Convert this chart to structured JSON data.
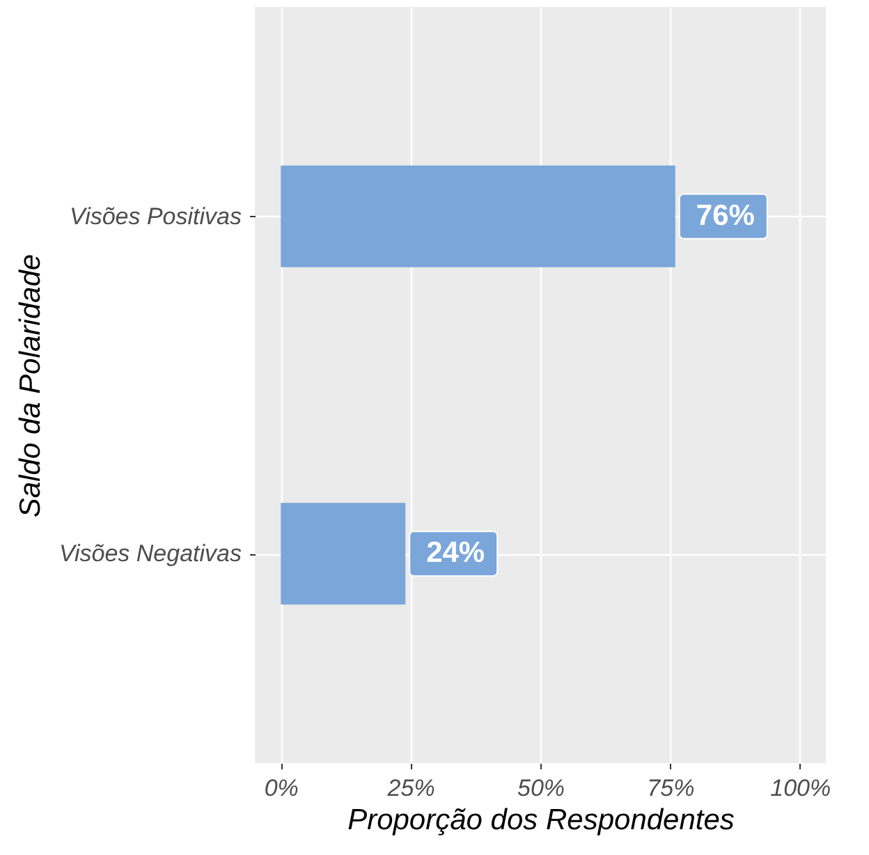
{
  "chart_data": {
    "type": "bar",
    "orientation": "horizontal",
    "xlabel": "Proporção dos Respondentes",
    "ylabel": "Saldo da Polaridade",
    "categories": [
      "Visões Positivas",
      "Visões Negativas"
    ],
    "values": [
      76,
      24
    ],
    "color": "#7aa6da",
    "value_labels": [
      "76%",
      "24%"
    ],
    "xlim": [
      -5,
      105
    ],
    "xticks": [
      {
        "value": 0,
        "label": "0%"
      },
      {
        "value": 25,
        "label": "25%"
      },
      {
        "value": 50,
        "label": "50%"
      },
      {
        "value": 75,
        "label": "75%"
      },
      {
        "value": 100,
        "label": "100%"
      }
    ],
    "grid": true
  }
}
